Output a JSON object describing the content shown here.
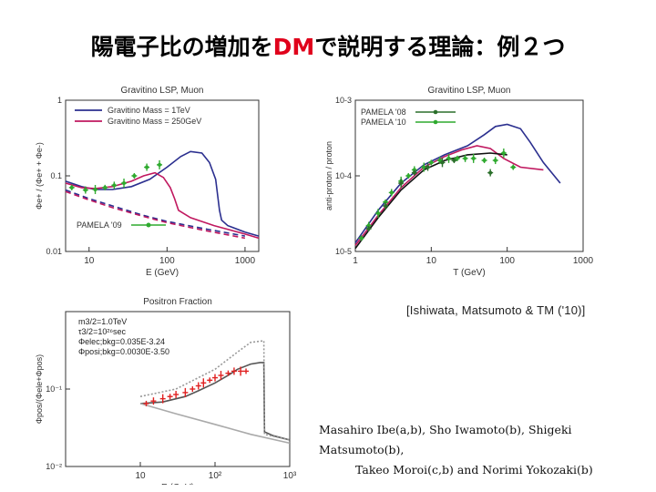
{
  "slide": {
    "title_pre": "陽電子比の増加を",
    "title_dm": "DM",
    "title_post": "で説明する理論：例２つ",
    "citation": "[Ishiwata, Matsumoto & TM ('10)]",
    "authors_line1": "Masahiro Ibe(a,b), Sho Iwamoto(b), Shigeki Matsumoto(b),",
    "authors_line2": "Takeo Moroi(c,b) and Norimi Yokozaki(b)"
  },
  "colors": {
    "title_accent": "#e0001b",
    "blue": "#2b2f8f",
    "magenta": "#c0185f",
    "green": "#2faa2f",
    "red": "#e02020"
  },
  "chart_data": [
    {
      "type": "line",
      "title": "Gravitino LSP, Muon",
      "xlabel": "E (GeV)",
      "ylabel": "Φe+ / (Φe+ + Φe-)",
      "xscale": "log",
      "yscale": "log",
      "xlim": [
        5,
        1500
      ],
      "ylim": [
        0.01,
        1
      ],
      "xticks": [
        "10",
        "100",
        "1000"
      ],
      "yticks": [
        "0.01",
        "0.1",
        "1"
      ],
      "legend": [
        "Gravitino Mass = 1TeV",
        "Gravitino Mass = 250GeV"
      ],
      "legend_bottom": "PAMELA '09",
      "series": [
        {
          "name": "Gravitino Mass = 1TeV",
          "color": "#2b2f8f",
          "x": [
            5,
            8,
            12,
            20,
            35,
            60,
            100,
            150,
            200,
            280,
            350,
            420,
            470,
            500,
            600,
            1000,
            1500
          ],
          "y": [
            0.085,
            0.072,
            0.066,
            0.066,
            0.072,
            0.09,
            0.13,
            0.18,
            0.21,
            0.2,
            0.15,
            0.09,
            0.035,
            0.026,
            0.022,
            0.018,
            0.016
          ]
        },
        {
          "name": "Gravitino Mass = 250GeV",
          "color": "#c0185f",
          "x": [
            5,
            8,
            12,
            20,
            35,
            50,
            70,
            90,
            110,
            125,
            140,
            200,
            400,
            1000,
            1500
          ],
          "y": [
            0.08,
            0.07,
            0.068,
            0.072,
            0.085,
            0.1,
            0.11,
            0.095,
            0.07,
            0.05,
            0.035,
            0.028,
            0.022,
            0.017,
            0.015
          ]
        },
        {
          "name": "",
          "color": "#2b2f8f",
          "dashed": true,
          "x": [
            5,
            10,
            20,
            50,
            100,
            300,
            1000
          ],
          "y": [
            0.065,
            0.05,
            0.04,
            0.03,
            0.025,
            0.02,
            0.016
          ]
        },
        {
          "name": "",
          "color": "#c0185f",
          "dashed": true,
          "x": [
            5,
            10,
            20,
            50,
            100,
            300,
            1000
          ],
          "y": [
            0.062,
            0.048,
            0.038,
            0.029,
            0.024,
            0.019,
            0.015
          ]
        },
        {
          "name": "PAMELA '09",
          "color": "#2faa2f",
          "points": true,
          "x": [
            6,
            9,
            12,
            16,
            21,
            28,
            38,
            55,
            80
          ],
          "y": [
            0.07,
            0.065,
            0.066,
            0.07,
            0.075,
            0.08,
            0.1,
            0.13,
            0.14
          ]
        }
      ]
    },
    {
      "type": "line",
      "title": "Gravitino LSP, Muon",
      "xlabel": "T (GeV)",
      "ylabel": "anti-proton / proton",
      "xscale": "log",
      "yscale": "log",
      "xlim": [
        1,
        1000
      ],
      "ylim": [
        1e-05,
        0.001
      ],
      "xticks": [
        "1",
        "10",
        "100",
        "1000"
      ],
      "yticks": [
        "10-5",
        "10-4",
        "10-3"
      ],
      "legend": [
        "PAMELA '08",
        "PAMELA '10"
      ],
      "series": [
        {
          "name": "",
          "color": "#2b2f8f",
          "x": [
            1,
            2,
            4,
            8,
            15,
            30,
            50,
            70,
            100,
            150,
            200,
            300,
            500
          ],
          "y": [
            1.3e-05,
            3.5e-05,
            8e-05,
            0.00014,
            0.00019,
            0.00025,
            0.00035,
            0.00045,
            0.00048,
            0.00042,
            0.00028,
            0.00015,
            8e-05
          ]
        },
        {
          "name": "",
          "color": "#c0185f",
          "x": [
            1,
            2,
            4,
            8,
            15,
            25,
            40,
            60,
            90,
            150,
            300
          ],
          "y": [
            1.2e-05,
            3e-05,
            7e-05,
            0.00013,
            0.00018,
            0.00022,
            0.00025,
            0.00023,
            0.00017,
            0.00013,
            0.00012
          ]
        },
        {
          "name": "",
          "color": "#111111",
          "x": [
            1,
            2,
            4,
            8,
            15,
            30,
            60,
            100
          ],
          "y": [
            1.1e-05,
            2.8e-05,
            6.5e-05,
            0.00012,
            0.00016,
            0.00019,
            0.0002,
            0.00019
          ]
        },
        {
          "name": "PAMELA '10",
          "color": "#2faa2f",
          "points": true,
          "x": [
            1.2,
            1.5,
            2,
            2.5,
            3,
            4,
            5,
            6,
            8,
            10,
            13,
            17,
            22,
            28,
            36,
            50,
            70,
            90,
            120
          ],
          "y": [
            1.5e-05,
            2.2e-05,
            3.2e-05,
            4.5e-05,
            6e-05,
            8.5e-05,
            0.0001,
            0.00012,
            0.00013,
            0.00015,
            0.00016,
            0.00017,
            0.00017,
            0.00017,
            0.00017,
            0.00016,
            0.00016,
            0.0002,
            0.00013
          ]
        },
        {
          "name": "PAMELA '08",
          "color": "#2b6f2b",
          "points": true,
          "x": [
            1.5,
            2.5,
            4,
            6,
            9,
            14,
            20,
            60
          ],
          "y": [
            2e-05,
            4e-05,
            8e-05,
            0.00011,
            0.00013,
            0.00015,
            0.00016,
            0.00011
          ]
        }
      ]
    },
    {
      "type": "line",
      "title": "Positron Fraction",
      "xlabel": "E (GeV)",
      "ylabel": "Φpos/(Φele+Φpos)",
      "xscale": "log",
      "yscale": "log",
      "xlim": [
        1,
        1000
      ],
      "ylim": [
        0.01,
        1
      ],
      "xticks": [
        "10",
        "10²",
        "10³"
      ],
      "yticks": [
        "10⁻²",
        "10⁻¹"
      ],
      "params": [
        "m3/2=1.0TeV",
        "τ3/2=10²⁶sec",
        "Φelec;bkg=0.035E-3.24",
        "Φposi;bkg=0.0030E-3.50"
      ],
      "series": [
        {
          "name": "",
          "color": "#555555",
          "x": [
            10,
            20,
            40,
            60,
            100,
            150,
            200,
            300,
            400,
            450,
            460,
            600,
            1000
          ],
          "y": [
            0.065,
            0.068,
            0.08,
            0.095,
            0.12,
            0.15,
            0.18,
            0.21,
            0.22,
            0.22,
            0.028,
            0.025,
            0.022
          ]
        },
        {
          "name": "",
          "color": "#999999",
          "dotted": true,
          "x": [
            10,
            30,
            100,
            200,
            300,
            450,
            460,
            1000
          ],
          "y": [
            0.08,
            0.1,
            0.18,
            0.3,
            0.4,
            0.42,
            0.026,
            0.022
          ]
        },
        {
          "name": "",
          "color": "#aaaaaa",
          "x": [
            10,
            30,
            100,
            300,
            1000
          ],
          "y": [
            0.065,
            0.048,
            0.035,
            0.026,
            0.02
          ]
        },
        {
          "name": "",
          "color": "#e02020",
          "points": true,
          "x": [
            12,
            15,
            20,
            25,
            30,
            40,
            50,
            60,
            70,
            85,
            100,
            120,
            150,
            180,
            220,
            260
          ],
          "y": [
            0.065,
            0.07,
            0.075,
            0.08,
            0.085,
            0.09,
            0.1,
            0.11,
            0.12,
            0.13,
            0.14,
            0.15,
            0.16,
            0.17,
            0.17,
            0.17
          ]
        }
      ]
    }
  ]
}
